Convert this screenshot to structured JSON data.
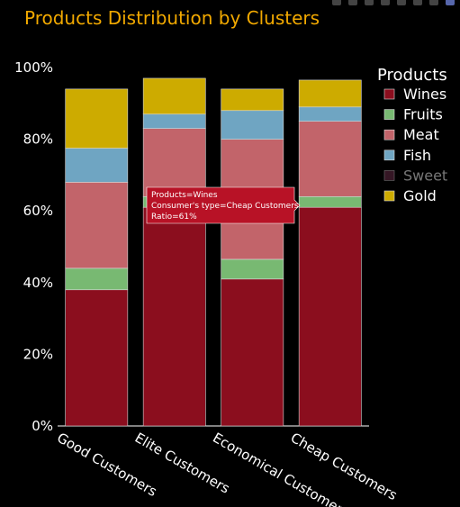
{
  "title": "Products Distribution by Clusters",
  "legend": {
    "title": "Products"
  },
  "tooltip": {
    "lines": [
      "Products=Wines",
      "Consumer's type=Cheap Customers",
      "Ratio=61%"
    ]
  },
  "chart_data": {
    "type": "bar",
    "stacked": true,
    "categories": [
      "Good Customers",
      "Elite Customers",
      "Economical Customers",
      "Cheap Customers"
    ],
    "series": [
      {
        "name": "Wines",
        "color": "#8b0e1e",
        "values": [
          38,
          61,
          41,
          61
        ]
      },
      {
        "name": "Fruits",
        "color": "#78b972",
        "values": [
          6,
          3,
          5.5,
          3
        ]
      },
      {
        "name": "Meat",
        "color": "#c2646a",
        "values": [
          24,
          19,
          33.5,
          21
        ]
      },
      {
        "name": "Fish",
        "color": "#6fa5c2",
        "values": [
          9.5,
          4,
          8,
          4
        ]
      },
      {
        "name": "Sweet",
        "color": "#6b2f4a",
        "values": [
          0,
          0,
          0,
          0
        ],
        "hidden": true
      },
      {
        "name": "Gold",
        "color": "#cdab00",
        "values": [
          16.5,
          10,
          6,
          7.5
        ]
      }
    ],
    "y_ticks": [
      "0%",
      "20%",
      "40%",
      "60%",
      "80%",
      "100%"
    ],
    "ylim": [
      0,
      100
    ],
    "legend_position": "right"
  }
}
